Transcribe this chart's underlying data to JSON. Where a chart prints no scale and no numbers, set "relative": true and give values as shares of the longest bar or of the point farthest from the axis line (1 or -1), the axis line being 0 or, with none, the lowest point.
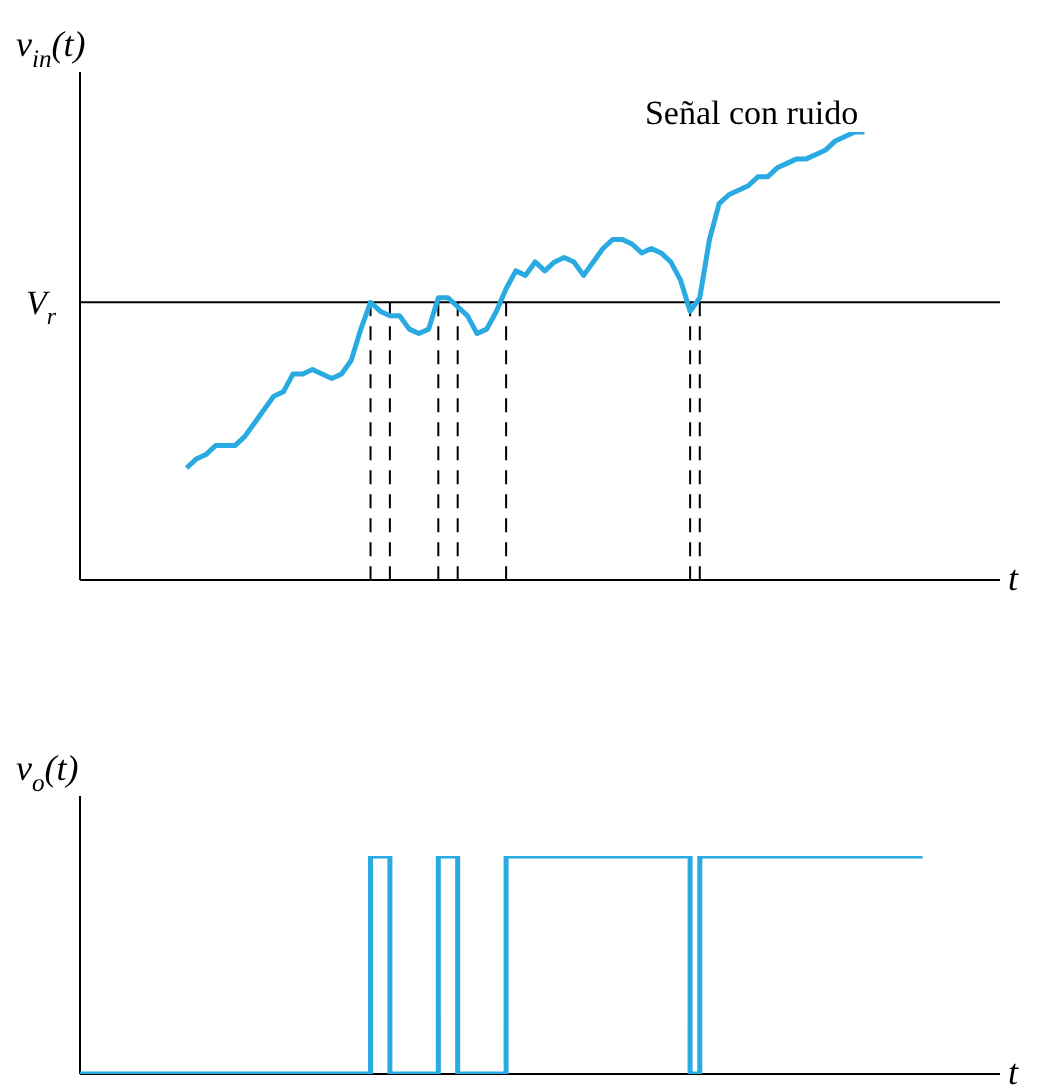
{
  "chart_data": [
    {
      "type": "line",
      "relative": true,
      "ylabel": "v$_{in}$(t)",
      "xlabel": "t",
      "tick_labels": false,
      "annotations": [
        "Señal con ruido"
      ],
      "categories": [
        null,
        null,
        null,
        null,
        null,
        null,
        null,
        null,
        null,
        null,
        null,
        null,
        null,
        null,
        null,
        null,
        null,
        null,
        null,
        null,
        null,
        null,
        null,
        null,
        null,
        null,
        null,
        null,
        null,
        null,
        null,
        null,
        null,
        null,
        null,
        null,
        null,
        null,
        null,
        null,
        null,
        null,
        null,
        null,
        null,
        null,
        null,
        null,
        null,
        null,
        null,
        null,
        null,
        null,
        null,
        null,
        null,
        null,
        null,
        null,
        null,
        null,
        null,
        null,
        null,
        null,
        null,
        null,
        null,
        null,
        null,
        null,
        null,
        null,
        null,
        null,
        null,
        null,
        null,
        null,
        null,
        null,
        null,
        null,
        null,
        null,
        null,
        null,
        null,
        null,
        null,
        null,
        null,
        null,
        null,
        null
      ],
      "series": [
        {
          "color": "#29abe2",
          "values": [
            null,
            null,
            null,
            null,
            null,
            null,
            null,
            null,
            null,
            null,
            null,
            0.25,
            0.27,
            0.28,
            0.3,
            0.3,
            0.3,
            0.32,
            0.35,
            0.38,
            0.41,
            0.42,
            0.46,
            0.46,
            0.47,
            0.46,
            0.45,
            0.46,
            0.49,
            0.56,
            0.62,
            0.6,
            0.59,
            0.59,
            0.56,
            0.55,
            0.56,
            0.63,
            0.63,
            0.61,
            0.59,
            0.55,
            0.56,
            0.6,
            0.65,
            0.69,
            0.68,
            0.71,
            0.69,
            0.71,
            0.72,
            0.71,
            0.68,
            0.71,
            0.74,
            0.76,
            0.76,
            0.75,
            0.73,
            0.74,
            0.73,
            0.71,
            0.67,
            0.6,
            0.63,
            0.76,
            0.84,
            0.86,
            0.87,
            0.88,
            0.9,
            0.9,
            0.92,
            0.93,
            0.94,
            0.94,
            0.95,
            0.96,
            0.98,
            0.99,
            1,
            1,
            null,
            null,
            null,
            null,
            null,
            null,
            null,
            null,
            null,
            null,
            null,
            null,
            null,
            null
          ]
        }
      ],
      "ref_lines": [
        {
          "axis": "y",
          "value": 0.62,
          "label": "V$_{r}$",
          "color": "#000000",
          "line_style": "solid"
        }
      ]
    },
    {
      "type": "step",
      "relative": true,
      "ylabel": "v$_{o}$(t)",
      "xlabel": "t",
      "tick_labels": false,
      "categories": [
        null,
        null,
        null,
        null,
        null,
        null,
        null,
        null,
        null,
        null,
        null,
        null,
        null,
        null,
        null,
        null,
        null,
        null,
        null,
        null,
        null,
        null,
        null,
        null,
        null,
        null,
        null,
        null,
        null,
        null,
        null,
        null,
        null,
        null,
        null,
        null,
        null,
        null,
        null,
        null,
        null,
        null,
        null,
        null,
        null,
        null,
        null,
        null,
        null,
        null,
        null,
        null,
        null,
        null,
        null,
        null,
        null,
        null,
        null,
        null,
        null,
        null,
        null,
        null,
        null,
        null,
        null,
        null,
        null,
        null,
        null,
        null,
        null,
        null,
        null,
        null,
        null,
        null,
        null,
        null,
        null,
        null,
        null,
        null,
        null,
        null,
        null,
        null,
        null,
        null,
        null,
        null,
        null,
        null,
        null,
        null
      ],
      "series": [
        {
          "color": "#29abe2",
          "values": [
            0,
            0,
            0,
            0,
            0,
            0,
            0,
            0,
            0,
            0,
            0,
            0,
            0,
            0,
            0,
            0,
            0,
            0,
            0,
            0,
            0,
            0,
            0,
            0,
            0,
            0,
            0,
            0,
            0,
            0,
            1,
            1,
            0,
            0,
            0,
            0,
            0,
            1,
            1,
            0,
            0,
            0,
            0,
            0,
            1,
            1,
            1,
            1,
            1,
            1,
            1,
            1,
            1,
            1,
            1,
            1,
            1,
            1,
            1,
            1,
            1,
            1,
            1,
            0,
            1,
            1,
            1,
            1,
            1,
            1,
            1,
            1,
            1,
            1,
            1,
            1,
            1,
            1,
            1,
            1,
            1,
            1,
            1,
            1,
            1,
            1,
            1,
            1,
            null,
            null,
            null,
            null,
            null,
            null,
            null,
            null
          ]
        }
      ]
    }
  ]
}
